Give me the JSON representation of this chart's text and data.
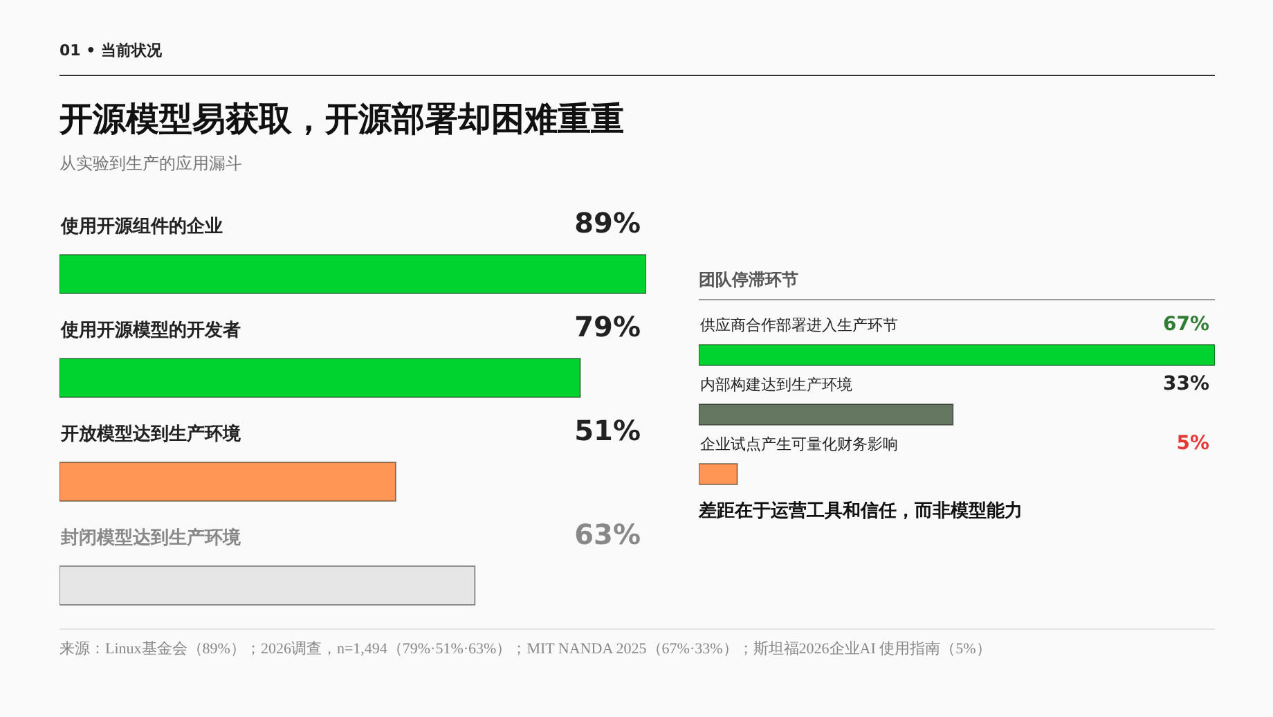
{
  "chart_data": [
    {
      "type": "bar",
      "orientation": "horizontal",
      "title": "开源模型易获取，开源部署却困难重重",
      "subtitle": "从实验到生产的应用漏斗",
      "annotations": [
        "01 • 当前状况"
      ],
      "categories": [
        "使用开源组件的企业",
        "使用开源模型的开发者",
        "开放模型达到生产环境",
        "封闭模型达到生产环境"
      ],
      "values": [
        89,
        79,
        51,
        63
      ],
      "value_labels": [
        "89%",
        "79%",
        "51%",
        "63%"
      ],
      "colors": [
        "#00d230",
        "#00d230",
        "#ff9655",
        "#e6e6e6"
      ],
      "tick_labels": "y"
    },
    {
      "type": "bar",
      "orientation": "horizontal",
      "title": "团队停滞环节",
      "annotations": [
        "差距在于运营工具和信任，而非模型能力",
        "来源：Linux基金会（89%）；2026调查，n=1,494（79%·51%·63%）；MIT NANDA 2025（67%·33%）；斯坦福2026企业AI 使用指南（5%）"
      ],
      "categories": [
        "供应商合作部署进入生产环节",
        "内部构建达到生产环境",
        "企业试点产生可量化财务影响"
      ],
      "values": [
        67,
        33,
        5
      ],
      "value_labels": [
        "67%",
        "33%",
        "5%"
      ],
      "colors": [
        "#00d230",
        "#667761",
        "#ff9655"
      ],
      "tick_labels": "y"
    }
  ]
}
